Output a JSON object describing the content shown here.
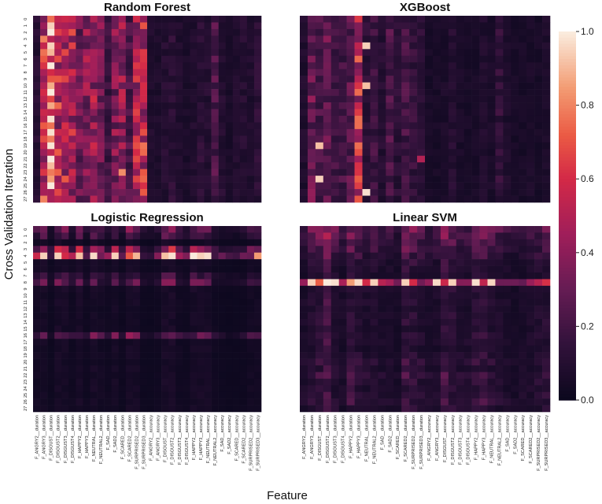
{
  "figure": {
    "ylabel": "Cross Validation Iteration",
    "xlabel": "Feature"
  },
  "chart_data": {
    "type": "heatmap",
    "colormap": "rocket",
    "vmin": 0.0,
    "vmax": 1.0,
    "colorbar_ticks": [
      "0.0",
      "0.2",
      "0.4",
      "0.6",
      "0.8",
      "1.0"
    ],
    "rows": [
      "0",
      "1",
      "2",
      "3",
      "4",
      "5",
      "6",
      "7",
      "8",
      "9",
      "10",
      "11",
      "12",
      "13",
      "14",
      "15",
      "16",
      "17",
      "18",
      "19",
      "20",
      "21",
      "22",
      "23",
      "24",
      "25",
      "26",
      "27"
    ],
    "features": [
      "F_ANGRY2__duration",
      "F_ANGRY3__duration",
      "F_DISGUST__duration",
      "F_DISGUST2__duration",
      "F_DISGUST3__duration",
      "F_DISGUST4__duration",
      "F_HAPPY2__duration",
      "F_HAPPY3__duration",
      "F_NEUTRAL__duration",
      "F_NEUTRAL2__duration",
      "F_SAD__duration",
      "F_SAD2__duration",
      "F_SCARED__duration",
      "F_SCARED2__duration",
      "F_SURPRISED2__duration",
      "F_SURPRISED3__duration",
      "F_ANGRY2__accuracy",
      "F_ANGRY3__accuracy",
      "F_DISGUST__accuracy",
      "F_DISGUST2__accuracy",
      "F_DISGUST3__accuracy",
      "F_DISGUST4__accuracy",
      "F_HAPPY2__accuracy",
      "F_HAPPY3__accuracy",
      "F_NEUTRAL__accuracy",
      "F_NEUTRAL2__accuracy",
      "F_SAD__accuracy",
      "F_SAD2__accuracy",
      "F_SCARED__accuracy",
      "F_SCARED2__accuracy",
      "F_SURPRISED2__accuracy",
      "F_SURPRISED3__accuracy"
    ],
    "panels": [
      {
        "title": "Random Forest",
        "column_profile": [
          0.1,
          0.55,
          0.72,
          0.52,
          0.5,
          0.48,
          0.32,
          0.38,
          0.42,
          0.34,
          0.18,
          0.36,
          0.44,
          0.22,
          0.5,
          0.55,
          0.08,
          0.07,
          0.1,
          0.12,
          0.08,
          0.06,
          0.08,
          0.12,
          0.1,
          0.22,
          0.1,
          0.06,
          0.08,
          0.1,
          0.08,
          0.12
        ],
        "row_profile": [
          1,
          1,
          1,
          1,
          1,
          1,
          1,
          1,
          1,
          1,
          1,
          1,
          1,
          1,
          1,
          1,
          1,
          1,
          1,
          1,
          1,
          1,
          1,
          1,
          1,
          1,
          1,
          1
        ],
        "hot_cells": [
          [
            1,
            2,
            0.95
          ],
          [
            5,
            2,
            0.9
          ],
          [
            10,
            2,
            0.88
          ],
          [
            23,
            12,
            0.82
          ],
          [
            24,
            2,
            0.85
          ]
        ]
      },
      {
        "title": "XGBoost",
        "column_profile": [
          0.08,
          0.3,
          0.2,
          0.28,
          0.18,
          0.2,
          0.25,
          0.55,
          0.12,
          0.18,
          0.1,
          0.22,
          0.12,
          0.2,
          0.15,
          0.12,
          0.05,
          0.05,
          0.06,
          0.1,
          0.06,
          0.05,
          0.05,
          0.08,
          0.06,
          0.14,
          0.07,
          0.05,
          0.05,
          0.06,
          0.05,
          0.07
        ],
        "row_profile": [
          1,
          1,
          1,
          1,
          1,
          1,
          1,
          1,
          1,
          1,
          1,
          1,
          1,
          1,
          1,
          1,
          1,
          1,
          1,
          1,
          1,
          1,
          1,
          1,
          1,
          1,
          1,
          1
        ],
        "hot_cells": [
          [
            4,
            8,
            0.95
          ],
          [
            10,
            8,
            0.92
          ],
          [
            19,
            2,
            0.92
          ],
          [
            21,
            15,
            0.5
          ],
          [
            24,
            2,
            0.95
          ],
          [
            26,
            8,
            0.98
          ]
        ]
      },
      {
        "title": "Logistic Regression",
        "column_profile": [
          0.35,
          0.55,
          0.15,
          0.6,
          0.5,
          0.25,
          0.55,
          0.2,
          0.55,
          0.35,
          0.2,
          0.5,
          0.15,
          0.55,
          0.55,
          0.15,
          0.12,
          0.18,
          0.6,
          0.65,
          0.3,
          0.2,
          0.55,
          0.6,
          0.5,
          0.2,
          0.15,
          0.1,
          0.12,
          0.15,
          0.35,
          0.4
        ],
        "row_profile": [
          0.55,
          0.35,
          0.08,
          0.75,
          1.5,
          0.08,
          0.08,
          0.3,
          0.45,
          0.1,
          0.08,
          0.08,
          0.08,
          0.08,
          0.08,
          0.08,
          0.55,
          0.08,
          0.08,
          0.08,
          0.08,
          0.08,
          0.08,
          0.08,
          0.08,
          0.08,
          0.08,
          0.08
        ],
        "hot_cells": [
          [
            4,
            1,
            0.95
          ],
          [
            4,
            3,
            0.95
          ],
          [
            4,
            6,
            0.92
          ],
          [
            4,
            8,
            0.97
          ],
          [
            4,
            11,
            0.95
          ],
          [
            4,
            14,
            0.9
          ],
          [
            4,
            18,
            0.92
          ],
          [
            4,
            19,
            0.98
          ],
          [
            4,
            23,
            0.95
          ],
          [
            4,
            24,
            0.98
          ],
          [
            4,
            31,
            0.85
          ]
        ]
      },
      {
        "title": "Linear SVM",
        "column_profile": [
          0.2,
          0.3,
          0.4,
          0.6,
          0.3,
          0.2,
          0.45,
          0.35,
          0.25,
          0.3,
          0.2,
          0.2,
          0.15,
          0.45,
          0.4,
          0.3,
          0.2,
          0.25,
          0.5,
          0.4,
          0.3,
          0.25,
          0.4,
          0.45,
          0.35,
          0.25,
          0.2,
          0.15,
          0.2,
          0.25,
          0.3,
          0.35
        ],
        "row_profile": [
          0.9,
          0.7,
          0.6,
          0.55,
          0.45,
          0.35,
          0.3,
          0.25,
          1.8,
          0.3,
          0.25,
          0.3,
          0.25,
          0.3,
          0.3,
          0.25,
          0.3,
          0.3,
          0.25,
          0.3,
          0.4,
          0.3,
          0.45,
          0.35,
          0.3,
          0.35,
          0.4,
          0.3
        ],
        "hot_cells": [
          [
            8,
            1,
            0.95
          ],
          [
            8,
            4,
            0.98
          ],
          [
            8,
            7,
            0.97
          ],
          [
            8,
            9,
            0.95
          ],
          [
            8,
            13,
            0.95
          ],
          [
            8,
            17,
            0.97
          ],
          [
            8,
            19,
            0.95
          ],
          [
            8,
            22,
            0.98
          ],
          [
            8,
            24,
            0.96
          ]
        ]
      }
    ]
  }
}
